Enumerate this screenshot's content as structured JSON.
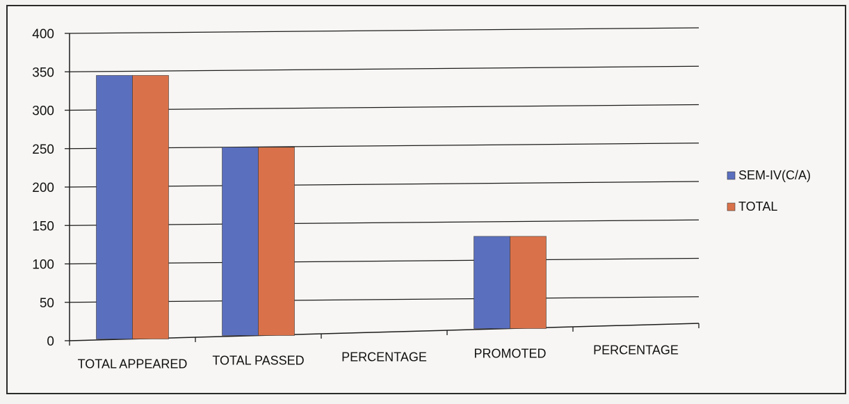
{
  "chart_data": {
    "type": "bar",
    "title": "",
    "xlabel": "",
    "ylabel": "",
    "categories": [
      "TOTAL APPEARED",
      "TOTAL PASSED",
      "PERCENTAGE",
      "PROMOTED",
      "PERCENTAGE"
    ],
    "series": [
      {
        "name": "SEM-IV(C/A)",
        "color": "#5b6fbf",
        "values": [
          343,
          245,
          0,
          120,
          0
        ]
      },
      {
        "name": "TOTAL",
        "color": "#d9724a",
        "values": [
          343,
          245,
          0,
          120,
          0
        ]
      }
    ],
    "ylim": [
      0,
      400
    ],
    "yticks": [
      0,
      50,
      100,
      150,
      200,
      250,
      300,
      350,
      400
    ],
    "grid": true,
    "legend_position": "right"
  }
}
